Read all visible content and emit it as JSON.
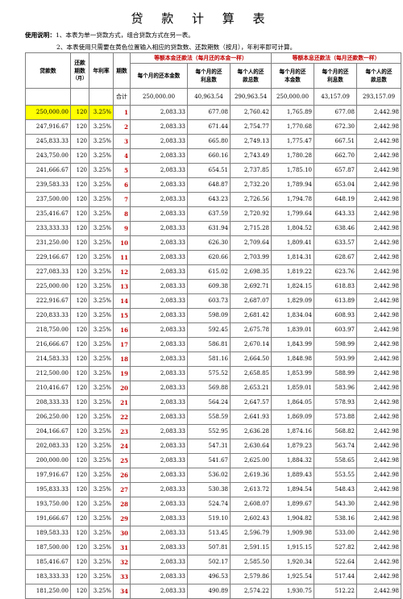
{
  "title": "贷 款 计 算 表",
  "notes": {
    "label": "使用说明：",
    "line1": "1、本表为单一贷款方式，组合贷款方式在另一表。",
    "line2": "2、本表使用只需要在黄色位置输入相应的贷款数、还款期数（按月），年利率即可计算。"
  },
  "headers": {
    "loan": "贷款数",
    "term": "还款期数",
    "term_unit": "（月）",
    "rate": "年利率",
    "period": "期数",
    "group_principal": "等额本金还款法（每月还的本金一样）",
    "group_interest": "等额本息还款法（每月还款数一样）",
    "p_principal": "每个月的还本金数",
    "p_interest": "每个月的还利息数",
    "p_total": "每个人的还款总数",
    "i_principal": "每个月的还本金数",
    "i_interest": "每个月的还利息数",
    "i_total": "每个人的还款总数"
  },
  "totals": {
    "label": "合计",
    "p_principal": "250,000.00",
    "p_interest": "40,963.54",
    "p_total": "290,963.54",
    "i_principal": "250,000.00",
    "i_interest": "43,157.09",
    "i_total": "293,157.09"
  },
  "rows": [
    {
      "loan": "250,000.00",
      "term": "120",
      "rate": "3.25%",
      "idx": "1",
      "pp": "2,083.33",
      "pi": "677.08",
      "pt": "2,760.42",
      "ip": "1,765.89",
      "ii": "677.08",
      "it": "2,442.98"
    },
    {
      "loan": "247,916.67",
      "term": "120",
      "rate": "3.25%",
      "idx": "2",
      "pp": "2,083.33",
      "pi": "671.44",
      "pt": "2,754.77",
      "ip": "1,770.68",
      "ii": "672.30",
      "it": "2,442.98"
    },
    {
      "loan": "245,833.33",
      "term": "120",
      "rate": "3.25%",
      "idx": "3",
      "pp": "2,083.33",
      "pi": "665.80",
      "pt": "2,749.13",
      "ip": "1,775.47",
      "ii": "667.51",
      "it": "2,442.98"
    },
    {
      "loan": "243,750.00",
      "term": "120",
      "rate": "3.25%",
      "idx": "4",
      "pp": "2,083.33",
      "pi": "660.16",
      "pt": "2,743.49",
      "ip": "1,780.28",
      "ii": "662.70",
      "it": "2,442.98"
    },
    {
      "loan": "241,666.67",
      "term": "120",
      "rate": "3.25%",
      "idx": "5",
      "pp": "2,083.33",
      "pi": "654.51",
      "pt": "2,737.85",
      "ip": "1,785.10",
      "ii": "657.87",
      "it": "2,442.98"
    },
    {
      "loan": "239,583.33",
      "term": "120",
      "rate": "3.25%",
      "idx": "6",
      "pp": "2,083.33",
      "pi": "648.87",
      "pt": "2,732.20",
      "ip": "1,789.94",
      "ii": "653.04",
      "it": "2,442.98"
    },
    {
      "loan": "237,500.00",
      "term": "120",
      "rate": "3.25%",
      "idx": "7",
      "pp": "2,083.33",
      "pi": "643.23",
      "pt": "2,726.56",
      "ip": "1,794.78",
      "ii": "648.19",
      "it": "2,442.98"
    },
    {
      "loan": "235,416.67",
      "term": "120",
      "rate": "3.25%",
      "idx": "8",
      "pp": "2,083.33",
      "pi": "637.59",
      "pt": "2,720.92",
      "ip": "1,799.64",
      "ii": "643.33",
      "it": "2,442.98"
    },
    {
      "loan": "233,333.33",
      "term": "120",
      "rate": "3.25%",
      "idx": "9",
      "pp": "2,083.33",
      "pi": "631.94",
      "pt": "2,715.28",
      "ip": "1,804.52",
      "ii": "638.46",
      "it": "2,442.98"
    },
    {
      "loan": "231,250.00",
      "term": "120",
      "rate": "3.25%",
      "idx": "10",
      "pp": "2,083.33",
      "pi": "626.30",
      "pt": "2,709.64",
      "ip": "1,809.41",
      "ii": "633.57",
      "it": "2,442.98"
    },
    {
      "loan": "229,166.67",
      "term": "120",
      "rate": "3.25%",
      "idx": "11",
      "pp": "2,083.33",
      "pi": "620.66",
      "pt": "2,703.99",
      "ip": "1,814.31",
      "ii": "628.67",
      "it": "2,442.98"
    },
    {
      "loan": "227,083.33",
      "term": "120",
      "rate": "3.25%",
      "idx": "12",
      "pp": "2,083.33",
      "pi": "615.02",
      "pt": "2,698.35",
      "ip": "1,819.22",
      "ii": "623.76",
      "it": "2,442.98"
    },
    {
      "loan": "225,000.00",
      "term": "120",
      "rate": "3.25%",
      "idx": "13",
      "pp": "2,083.33",
      "pi": "609.38",
      "pt": "2,692.71",
      "ip": "1,824.15",
      "ii": "618.83",
      "it": "2,442.98"
    },
    {
      "loan": "222,916.67",
      "term": "120",
      "rate": "3.25%",
      "idx": "14",
      "pp": "2,083.33",
      "pi": "603.73",
      "pt": "2,687.07",
      "ip": "1,829.09",
      "ii": "613.89",
      "it": "2,442.98"
    },
    {
      "loan": "220,833.33",
      "term": "120",
      "rate": "3.25%",
      "idx": "15",
      "pp": "2,083.33",
      "pi": "598.09",
      "pt": "2,681.42",
      "ip": "1,834.04",
      "ii": "608.93",
      "it": "2,442.98"
    },
    {
      "loan": "218,750.00",
      "term": "120",
      "rate": "3.25%",
      "idx": "16",
      "pp": "2,083.33",
      "pi": "592.45",
      "pt": "2,675.78",
      "ip": "1,839.01",
      "ii": "603.97",
      "it": "2,442.98"
    },
    {
      "loan": "216,666.67",
      "term": "120",
      "rate": "3.25%",
      "idx": "17",
      "pp": "2,083.33",
      "pi": "586.81",
      "pt": "2,670.14",
      "ip": "1,843.99",
      "ii": "598.99",
      "it": "2,442.98"
    },
    {
      "loan": "214,583.33",
      "term": "120",
      "rate": "3.25%",
      "idx": "18",
      "pp": "2,083.33",
      "pi": "581.16",
      "pt": "2,664.50",
      "ip": "1,848.98",
      "ii": "593.99",
      "it": "2,442.98"
    },
    {
      "loan": "212,500.00",
      "term": "120",
      "rate": "3.25%",
      "idx": "19",
      "pp": "2,083.33",
      "pi": "575.52",
      "pt": "2,658.85",
      "ip": "1,853.99",
      "ii": "588.99",
      "it": "2,442.98"
    },
    {
      "loan": "210,416.67",
      "term": "120",
      "rate": "3.25%",
      "idx": "20",
      "pp": "2,083.33",
      "pi": "569.88",
      "pt": "2,653.21",
      "ip": "1,859.01",
      "ii": "583.96",
      "it": "2,442.98"
    },
    {
      "loan": "208,333.33",
      "term": "120",
      "rate": "3.25%",
      "idx": "21",
      "pp": "2,083.33",
      "pi": "564.24",
      "pt": "2,647.57",
      "ip": "1,864.05",
      "ii": "578.93",
      "it": "2,442.98"
    },
    {
      "loan": "206,250.00",
      "term": "120",
      "rate": "3.25%",
      "idx": "22",
      "pp": "2,083.33",
      "pi": "558.59",
      "pt": "2,641.93",
      "ip": "1,869.09",
      "ii": "573.88",
      "it": "2,442.98"
    },
    {
      "loan": "204,166.67",
      "term": "120",
      "rate": "3.25%",
      "idx": "23",
      "pp": "2,083.33",
      "pi": "552.95",
      "pt": "2,636.28",
      "ip": "1,874.16",
      "ii": "568.82",
      "it": "2,442.98"
    },
    {
      "loan": "202,083.33",
      "term": "120",
      "rate": "3.25%",
      "idx": "24",
      "pp": "2,083.33",
      "pi": "547.31",
      "pt": "2,630.64",
      "ip": "1,879.23",
      "ii": "563.74",
      "it": "2,442.98"
    },
    {
      "loan": "200,000.00",
      "term": "120",
      "rate": "3.25%",
      "idx": "25",
      "pp": "2,083.33",
      "pi": "541.67",
      "pt": "2,625.00",
      "ip": "1,884.32",
      "ii": "558.65",
      "it": "2,442.98"
    },
    {
      "loan": "197,916.67",
      "term": "120",
      "rate": "3.25%",
      "idx": "26",
      "pp": "2,083.33",
      "pi": "536.02",
      "pt": "2,619.36",
      "ip": "1,889.43",
      "ii": "553.55",
      "it": "2,442.98"
    },
    {
      "loan": "195,833.33",
      "term": "120",
      "rate": "3.25%",
      "idx": "27",
      "pp": "2,083.33",
      "pi": "530.38",
      "pt": "2,613.72",
      "ip": "1,894.54",
      "ii": "548.43",
      "it": "2,442.98"
    },
    {
      "loan": "193,750.00",
      "term": "120",
      "rate": "3.25%",
      "idx": "28",
      "pp": "2,083.33",
      "pi": "524.74",
      "pt": "2,608.07",
      "ip": "1,899.67",
      "ii": "543.30",
      "it": "2,442.98"
    },
    {
      "loan": "191,666.67",
      "term": "120",
      "rate": "3.25%",
      "idx": "29",
      "pp": "2,083.33",
      "pi": "519.10",
      "pt": "2,602.43",
      "ip": "1,904.82",
      "ii": "538.16",
      "it": "2,442.98"
    },
    {
      "loan": "189,583.33",
      "term": "120",
      "rate": "3.25%",
      "idx": "30",
      "pp": "2,083.33",
      "pi": "513.45",
      "pt": "2,596.79",
      "ip": "1,909.98",
      "ii": "533.00",
      "it": "2,442.98"
    },
    {
      "loan": "187,500.00",
      "term": "120",
      "rate": "3.25%",
      "idx": "31",
      "pp": "2,083.33",
      "pi": "507.81",
      "pt": "2,591.15",
      "ip": "1,915.15",
      "ii": "527.82",
      "it": "2,442.98"
    },
    {
      "loan": "185,416.67",
      "term": "120",
      "rate": "3.25%",
      "idx": "32",
      "pp": "2,083.33",
      "pi": "502.17",
      "pt": "2,585.50",
      "ip": "1,920.34",
      "ii": "522.64",
      "it": "2,442.98"
    },
    {
      "loan": "183,333.33",
      "term": "120",
      "rate": "3.25%",
      "idx": "33",
      "pp": "2,083.33",
      "pi": "496.53",
      "pt": "2,579.86",
      "ip": "1,925.54",
      "ii": "517.44",
      "it": "2,442.98"
    },
    {
      "loan": "181,250.00",
      "term": "120",
      "rate": "3.25%",
      "idx": "34",
      "pp": "2,083.33",
      "pi": "490.89",
      "pt": "2,574.22",
      "ip": "1,930.75",
      "ii": "512.22",
      "it": "2,442.98"
    }
  ]
}
